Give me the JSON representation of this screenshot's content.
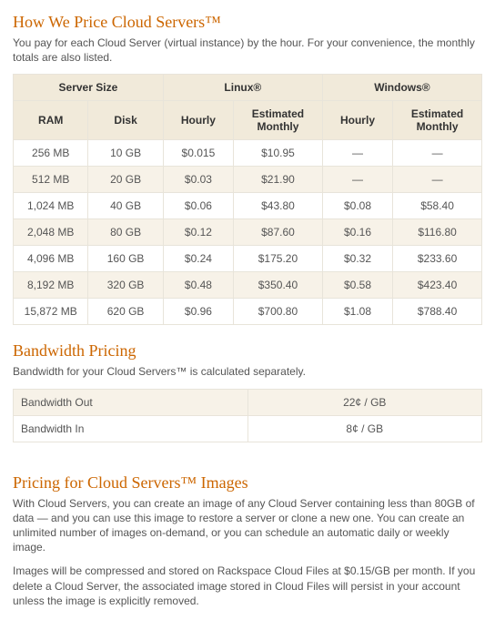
{
  "colors": {
    "heading": "#cc6600",
    "body_text": "#555555",
    "table_border": "#e8e4da",
    "header_bg": "#f1eada",
    "stripe_bg": "#f7f2e8",
    "plain_bg": "#ffffff"
  },
  "server_pricing": {
    "heading": "How We Price Cloud Servers™",
    "intro": "You pay for each Cloud Server (virtual instance) by the hour. For your convenience, the monthly totals are also listed.",
    "group_headers": {
      "size": "Server Size",
      "linux": "Linux®",
      "windows": "Windows®"
    },
    "col_headers": {
      "ram": "RAM",
      "disk": "Disk",
      "hourly": "Hourly",
      "monthly": "Estimated Monthly"
    },
    "rows": [
      {
        "ram": "256 MB",
        "disk": "10 GB",
        "linux_hourly": "$0.015",
        "linux_monthly": "$10.95",
        "win_hourly": "—",
        "win_monthly": "—"
      },
      {
        "ram": "512 MB",
        "disk": "20 GB",
        "linux_hourly": "$0.03",
        "linux_monthly": "$21.90",
        "win_hourly": "—",
        "win_monthly": "—"
      },
      {
        "ram": "1,024 MB",
        "disk": "40 GB",
        "linux_hourly": "$0.06",
        "linux_monthly": "$43.80",
        "win_hourly": "$0.08",
        "win_monthly": "$58.40"
      },
      {
        "ram": "2,048 MB",
        "disk": "80 GB",
        "linux_hourly": "$0.12",
        "linux_monthly": "$87.60",
        "win_hourly": "$0.16",
        "win_monthly": "$116.80"
      },
      {
        "ram": "4,096 MB",
        "disk": "160 GB",
        "linux_hourly": "$0.24",
        "linux_monthly": "$175.20",
        "win_hourly": "$0.32",
        "win_monthly": "$233.60"
      },
      {
        "ram": "8,192 MB",
        "disk": "320 GB",
        "linux_hourly": "$0.48",
        "linux_monthly": "$350.40",
        "win_hourly": "$0.58",
        "win_monthly": "$423.40"
      },
      {
        "ram": "15,872 MB",
        "disk": "620 GB",
        "linux_hourly": "$0.96",
        "linux_monthly": "$700.80",
        "win_hourly": "$1.08",
        "win_monthly": "$788.40"
      }
    ]
  },
  "bandwidth": {
    "heading": "Bandwidth Pricing",
    "intro": "Bandwidth for your Cloud Servers™ is calculated separately.",
    "rows": [
      {
        "label": "Bandwidth Out",
        "value": "22¢ / GB"
      },
      {
        "label": "Bandwidth In",
        "value": "8¢ / GB"
      }
    ]
  },
  "images": {
    "heading": "Pricing for Cloud Servers™ Images",
    "para1": "With Cloud Servers, you can create an image of any Cloud Server containing less than 80GB of data — and you can use this image to restore a server or clone a new one. You can create an unlimited number of images on-demand, or you can schedule an automatic daily or weekly image.",
    "para2": "Images will be compressed and stored on Rackspace Cloud Files at $0.15/GB per month. If you delete a Cloud Server, the associated image stored in Cloud Files will persist in your account unless the image is explicitly removed."
  }
}
